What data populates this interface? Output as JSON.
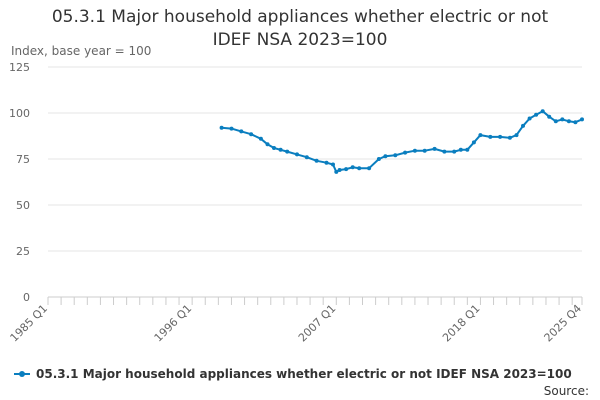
{
  "chart_data": {
    "type": "line",
    "title_line1": "05.3.1 Major household appliances whether electric or not",
    "title_line2": "IDEF NSA 2023=100",
    "ylabel": "Index, base year = 100",
    "ylim": [
      0,
      125
    ],
    "yticks": [
      "0",
      "25",
      "50",
      "75",
      "100",
      "125"
    ],
    "xticks": [
      "1985 Q1",
      "1996 Q1",
      "2007 Q1",
      "2018 Q1",
      "2025 Q4"
    ],
    "grid": true,
    "legend_position": "bottom",
    "color": "#0a7ebf",
    "series": [
      {
        "name": "05.3.1 Major household appliances whether electric or not IDEF NSA 2023=100",
        "points": [
          [
            "1998 Q2",
            92
          ],
          [
            "1999 Q1",
            91.5
          ],
          [
            "1999 Q4",
            90
          ],
          [
            "2000 Q3",
            88.5
          ],
          [
            "2001 Q2",
            86
          ],
          [
            "2001 Q4",
            83
          ],
          [
            "2002 Q2",
            81
          ],
          [
            "2002 Q4",
            80
          ],
          [
            "2003 Q2",
            79
          ],
          [
            "2004 Q1",
            77.5
          ],
          [
            "2004 Q4",
            76
          ],
          [
            "2005 Q3",
            74
          ],
          [
            "2006 Q2",
            73
          ],
          [
            "2006 Q4",
            72
          ],
          [
            "2007 Q1",
            68
          ],
          [
            "2007 Q2",
            69
          ],
          [
            "2007 Q4",
            69.5
          ],
          [
            "2008 Q2",
            70.5
          ],
          [
            "2008 Q4",
            70
          ],
          [
            "2009 Q3",
            70
          ],
          [
            "2010 Q2",
            75
          ],
          [
            "2010 Q4",
            76.5
          ],
          [
            "2011 Q3",
            77
          ],
          [
            "2012 Q2",
            78.5
          ],
          [
            "2013 Q1",
            79.5
          ],
          [
            "2013 Q4",
            79.5
          ],
          [
            "2014 Q3",
            80.5
          ],
          [
            "2015 Q2",
            79
          ],
          [
            "2016 Q1",
            79
          ],
          [
            "2016 Q3",
            80
          ],
          [
            "2017 Q1",
            80
          ],
          [
            "2017 Q3",
            84
          ],
          [
            "2018 Q1",
            88
          ],
          [
            "2018 Q4",
            87
          ],
          [
            "2019 Q3",
            87
          ],
          [
            "2020 Q2",
            86.5
          ],
          [
            "2020 Q4",
            88
          ],
          [
            "2021 Q2",
            93
          ],
          [
            "2021 Q4",
            97
          ],
          [
            "2022 Q2",
            99
          ],
          [
            "2022 Q4",
            101
          ],
          [
            "2023 Q2",
            98
          ],
          [
            "2023 Q4",
            95.5
          ],
          [
            "2024 Q2",
            96.5
          ],
          [
            "2024 Q4",
            95.5
          ],
          [
            "2025 Q2",
            95
          ],
          [
            "2025 Q4",
            96.5
          ]
        ]
      }
    ]
  },
  "legend": {
    "label": "05.3.1 Major household appliances whether electric or not IDEF NSA 2023=100"
  },
  "source": {
    "label": "Source:"
  }
}
